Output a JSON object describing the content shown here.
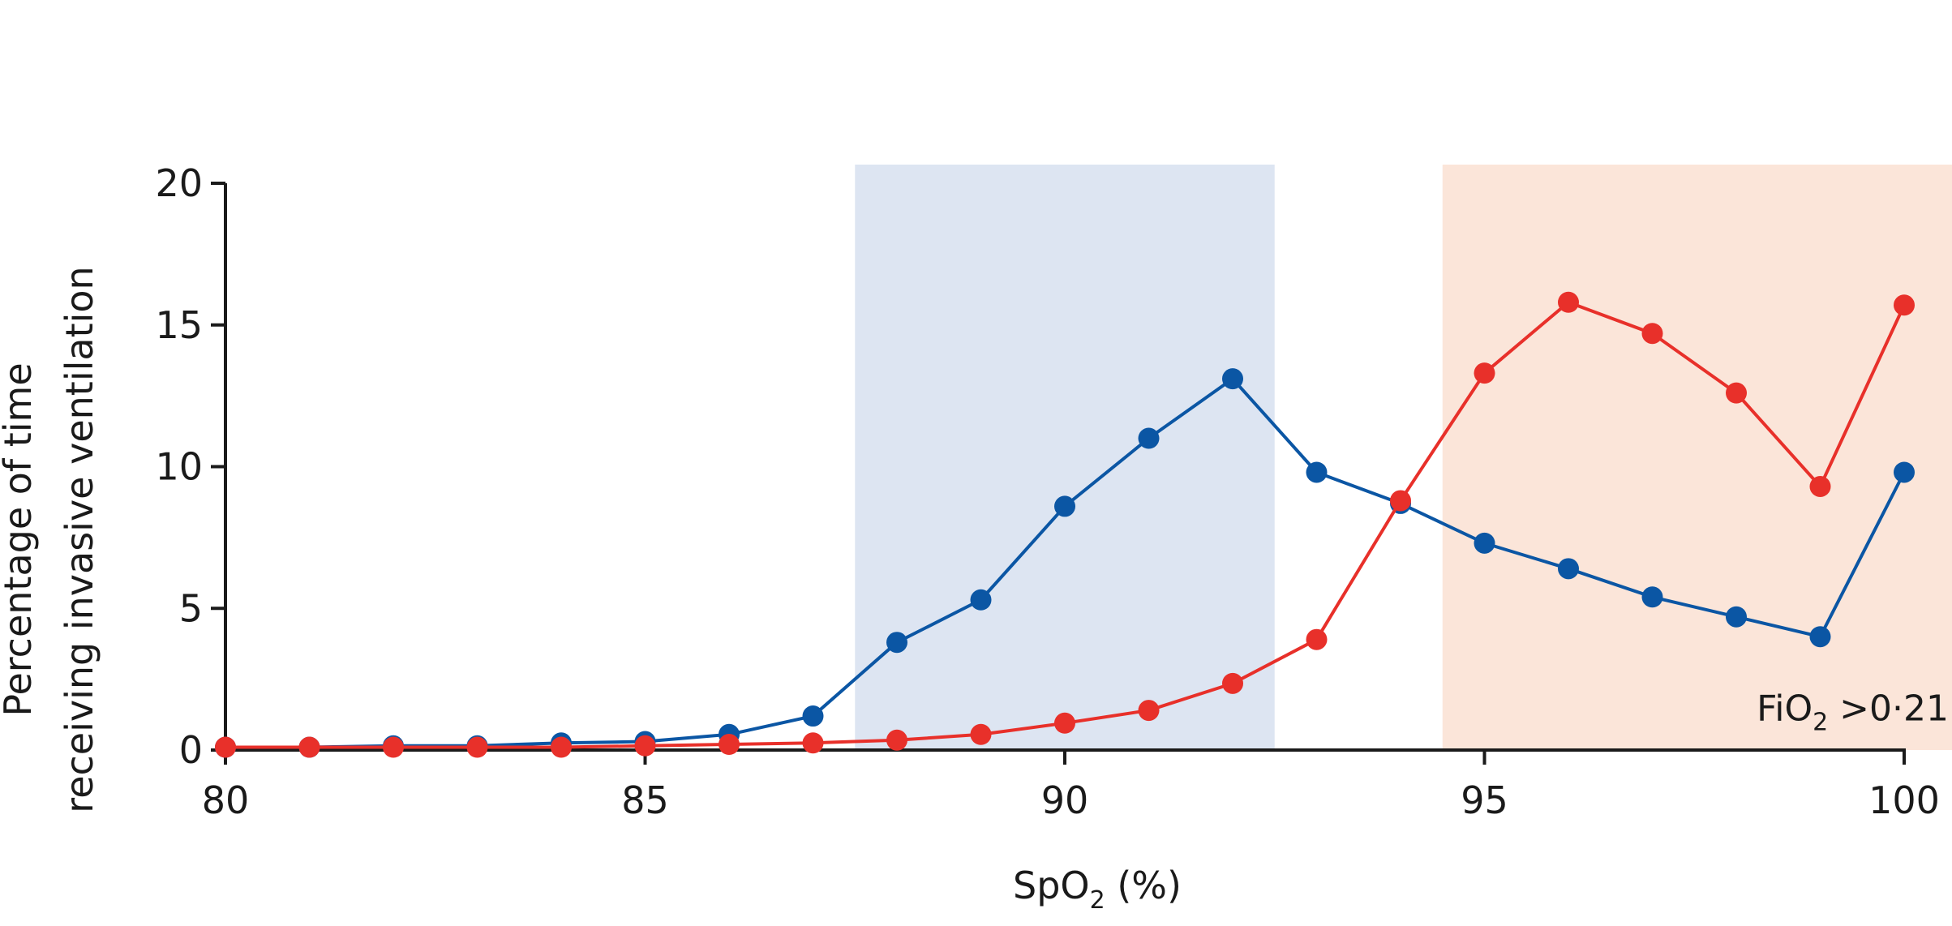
{
  "chart_data": {
    "type": "line",
    "title": "",
    "xlabel_main": "SpO",
    "xlabel_sub": "2",
    "xlabel_tail": " (%)",
    "ylabel_line1": "Percentage of time",
    "ylabel_line2": "receiving invasive ventilation",
    "xlim": [
      80,
      101
    ],
    "ylim": [
      0,
      20
    ],
    "xticks": [
      80,
      85,
      90,
      95,
      100
    ],
    "xtick_labels": [
      "80",
      "85",
      "90",
      "95",
      "100"
    ],
    "yticks": [
      0,
      5,
      10,
      15,
      20
    ],
    "ytick_labels": [
      "0",
      "5",
      "10",
      "15",
      "20"
    ],
    "grid": false,
    "shaded_regions": [
      {
        "x0": 87.5,
        "x1": 92.5,
        "color": "#dde5f2"
      },
      {
        "x0": 94.5,
        "x1": 101,
        "color": "#fbe5d9"
      }
    ],
    "annotation": {
      "main": "FiO",
      "sub": "2",
      "tail": " >0·21",
      "x": 100.6,
      "y": 1.5
    },
    "series": [
      {
        "color": "#0b56a4",
        "x": [
          80,
          81,
          82,
          83,
          84,
          85,
          86,
          87,
          88,
          89,
          90,
          91,
          92,
          93,
          94,
          95,
          96,
          97,
          98,
          99,
          100
        ],
        "y": [
          0.1,
          0.1,
          0.15,
          0.15,
          0.25,
          0.3,
          0.55,
          1.2,
          3.8,
          5.3,
          8.6,
          11.0,
          13.1,
          9.8,
          8.7,
          7.3,
          6.4,
          5.4,
          4.7,
          4.0,
          9.8
        ]
      },
      {
        "color": "#e8302a",
        "x": [
          80,
          81,
          82,
          83,
          84,
          85,
          86,
          87,
          88,
          89,
          90,
          91,
          92,
          93,
          94,
          95,
          96,
          97,
          98,
          99,
          100
        ],
        "y": [
          0.1,
          0.1,
          0.1,
          0.1,
          0.1,
          0.15,
          0.2,
          0.25,
          0.35,
          0.55,
          0.95,
          1.4,
          2.35,
          3.9,
          8.8,
          13.3,
          15.8,
          14.7,
          12.6,
          9.3,
          15.7
        ]
      }
    ]
  }
}
